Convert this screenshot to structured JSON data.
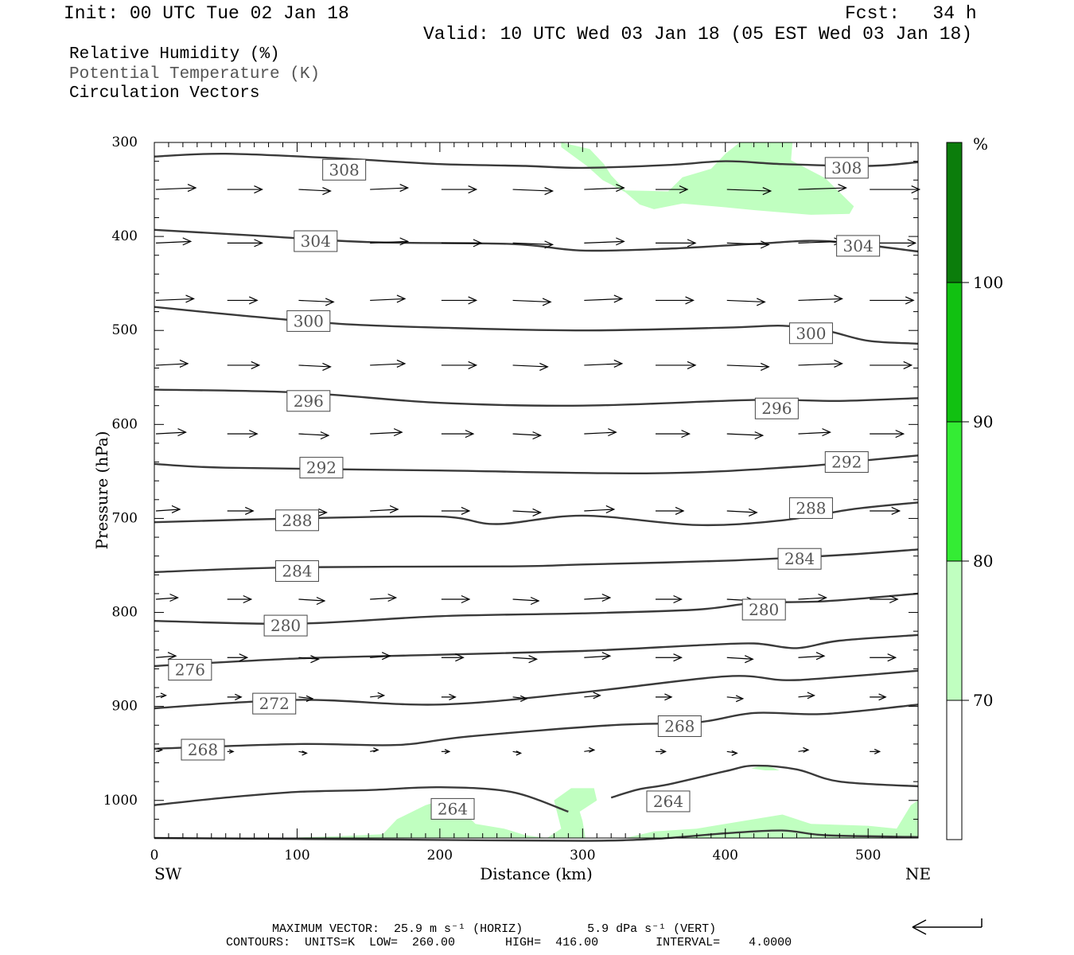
{
  "header": {
    "init": "Init: 00 UTC Tue 02 Jan 18",
    "fcst": "Fcst:   34 h",
    "valid": "Valid: 10 UTC Wed 03 Jan 18 (05 EST Wed 03 Jan 18)"
  },
  "legend": {
    "rh": "Relative Humidity (%)",
    "theta": "Potential Temperature (K)",
    "vectors": "Circulation Vectors"
  },
  "footer": {
    "max_vector": "MAXIMUM VECTOR:  25.9 m s⁻¹ (HORIZ)         5.9 dPa s⁻¹ (VERT)",
    "contours": "CONTOURS:  UNITS=K  LOW=  260.00       HIGH=  416.00        INTERVAL=    4.0000"
  },
  "colors": {
    "contour": "#3a3a3a",
    "rh_70": "#c0ffc0",
    "rh_80": "#34ec34",
    "rh_90": "#11c111",
    "rh_100": "#0b7d0b",
    "theta_label": "#555555"
  },
  "chart_data": {
    "type": "cross-section",
    "xlabel": "Distance (km)",
    "ylabel": "Pressure (hPa)",
    "x_range": [
      0,
      535
    ],
    "y_range": [
      1040,
      300
    ],
    "x_ticks": [
      "0",
      "100",
      "200",
      "300",
      "400",
      "500"
    ],
    "y_ticks": [
      "300",
      "400",
      "500",
      "600",
      "700",
      "800",
      "900",
      "1000"
    ],
    "endpoints": {
      "left": "SW",
      "right": "NE"
    },
    "colorbar": {
      "unit": "%",
      "levels": [
        "70",
        "80",
        "90",
        "100"
      ],
      "colors": [
        "#ffffff",
        "#c0ffc0",
        "#34ec34",
        "#11c111",
        "#0b7d0b"
      ]
    },
    "theta_contours": [
      {
        "label": "308",
        "points": [
          [
            0,
            315
          ],
          [
            50,
            312
          ],
          [
            130,
            317
          ],
          [
            200,
            323
          ],
          [
            260,
            325
          ],
          [
            300,
            327
          ],
          [
            360,
            324
          ],
          [
            400,
            320
          ],
          [
            440,
            323
          ],
          [
            500,
            325
          ],
          [
            535,
            321
          ]
        ]
      },
      {
        "label": "304",
        "points": [
          [
            0,
            393
          ],
          [
            70,
            399
          ],
          [
            150,
            406
          ],
          [
            250,
            408
          ],
          [
            300,
            415
          ],
          [
            360,
            413
          ],
          [
            420,
            408
          ],
          [
            470,
            405
          ],
          [
            535,
            416
          ]
        ]
      },
      {
        "label": "300",
        "points": [
          [
            0,
            475
          ],
          [
            60,
            484
          ],
          [
            130,
            493
          ],
          [
            200,
            497
          ],
          [
            300,
            500
          ],
          [
            400,
            497
          ],
          [
            440,
            495
          ],
          [
            470,
            500
          ],
          [
            500,
            511
          ],
          [
            535,
            514
          ]
        ]
      },
      {
        "label": "296",
        "points": [
          [
            0,
            563
          ],
          [
            100,
            566
          ],
          [
            200,
            577
          ],
          [
            300,
            580
          ],
          [
            420,
            574
          ],
          [
            480,
            575
          ],
          [
            535,
            572
          ]
        ]
      },
      {
        "label": "292",
        "points": [
          [
            0,
            642
          ],
          [
            50,
            646
          ],
          [
            200,
            649
          ],
          [
            350,
            652
          ],
          [
            450,
            645
          ],
          [
            500,
            638
          ],
          [
            535,
            633
          ]
        ]
      },
      {
        "label": "288",
        "points": [
          [
            0,
            704
          ],
          [
            100,
            700
          ],
          [
            200,
            698
          ],
          [
            240,
            706
          ],
          [
            300,
            697
          ],
          [
            380,
            707
          ],
          [
            440,
            702
          ],
          [
            490,
            690
          ],
          [
            535,
            683
          ]
        ]
      },
      {
        "label": "284",
        "points": [
          [
            0,
            757
          ],
          [
            100,
            752
          ],
          [
            250,
            751
          ],
          [
            300,
            749
          ],
          [
            400,
            745
          ],
          [
            480,
            739
          ],
          [
            535,
            733
          ]
        ]
      },
      {
        "label": "280",
        "points": [
          [
            0,
            809
          ],
          [
            100,
            812
          ],
          [
            200,
            804
          ],
          [
            300,
            801
          ],
          [
            380,
            797
          ],
          [
            420,
            790
          ],
          [
            470,
            788
          ],
          [
            535,
            780
          ]
        ]
      },
      {
        "label": "276",
        "points": [
          [
            0,
            857
          ],
          [
            100,
            849
          ],
          [
            200,
            845
          ],
          [
            300,
            841
          ],
          [
            380,
            835
          ],
          [
            420,
            833
          ],
          [
            450,
            838
          ],
          [
            480,
            830
          ],
          [
            535,
            824
          ]
        ]
      },
      {
        "label": "272",
        "points": [
          [
            0,
            902
          ],
          [
            100,
            893
          ],
          [
            200,
            898
          ],
          [
            300,
            885
          ],
          [
            400,
            868
          ],
          [
            440,
            872
          ],
          [
            470,
            870
          ],
          [
            535,
            862
          ]
        ]
      },
      {
        "label": "268",
        "points": [
          [
            0,
            945
          ],
          [
            100,
            940
          ],
          [
            170,
            941
          ],
          [
            220,
            932
          ],
          [
            320,
            920
          ],
          [
            380,
            917
          ],
          [
            420,
            907
          ],
          [
            470,
            908
          ],
          [
            535,
            898
          ]
        ]
      },
      {
        "label": "264",
        "points": [
          [
            0,
            1005
          ],
          [
            50,
            997
          ],
          [
            100,
            991
          ],
          [
            150,
            989
          ],
          [
            200,
            986
          ],
          [
            250,
            991
          ],
          [
            290,
            1012
          ]
        ]
      },
      {
        "label": "264",
        "points": [
          [
            320,
            997
          ],
          [
            340,
            988
          ],
          [
            360,
            983
          ],
          [
            400,
            969
          ],
          [
            420,
            963
          ],
          [
            450,
            967
          ],
          [
            480,
            980
          ],
          [
            535,
            985
          ]
        ]
      },
      {
        "label": "",
        "points": [
          [
            0,
            1040
          ],
          [
            100,
            1041
          ],
          [
            200,
            1042
          ],
          [
            300,
            1043
          ],
          [
            350,
            1041
          ],
          [
            400,
            1035
          ],
          [
            440,
            1032
          ],
          [
            470,
            1037
          ],
          [
            535,
            1039
          ]
        ]
      }
    ],
    "label_positions": [
      {
        "label": "308",
        "x": 133,
        "p": 329
      },
      {
        "label": "308",
        "x": 485,
        "p": 327
      },
      {
        "label": "304",
        "x": 113,
        "p": 405
      },
      {
        "label": "304",
        "x": 493,
        "p": 410
      },
      {
        "label": "300",
        "x": 108,
        "p": 490
      },
      {
        "label": "300",
        "x": 460,
        "p": 503
      },
      {
        "label": "296",
        "x": 108,
        "p": 575
      },
      {
        "label": "296",
        "x": 436,
        "p": 583
      },
      {
        "label": "292",
        "x": 117,
        "p": 646
      },
      {
        "label": "292",
        "x": 485,
        "p": 640
      },
      {
        "label": "288",
        "x": 100,
        "p": 702
      },
      {
        "label": "288",
        "x": 460,
        "p": 689
      },
      {
        "label": "284",
        "x": 100,
        "p": 756
      },
      {
        "label": "284",
        "x": 452,
        "p": 743
      },
      {
        "label": "280",
        "x": 92,
        "p": 814
      },
      {
        "label": "280",
        "x": 427,
        "p": 797
      },
      {
        "label": "276",
        "x": 25,
        "p": 861
      },
      {
        "label": "272",
        "x": 84,
        "p": 897
      },
      {
        "label": "268",
        "x": 368,
        "p": 921
      },
      {
        "label": "268",
        "x": 34,
        "p": 946
      },
      {
        "label": "264",
        "x": 209,
        "p": 1009
      },
      {
        "label": "264",
        "x": 360,
        "p": 1001
      }
    ],
    "rh_regions": [
      {
        "level": "70-80",
        "points": [
          [
            285,
            300
          ],
          [
            305,
            307
          ],
          [
            315,
            323
          ],
          [
            320,
            335
          ],
          [
            330,
            351
          ],
          [
            360,
            352
          ],
          [
            370,
            337
          ],
          [
            390,
            328
          ],
          [
            400,
            312
          ],
          [
            410,
            300
          ],
          [
            447,
            300
          ],
          [
            446,
            319
          ],
          [
            470,
            338
          ],
          [
            490,
            368
          ],
          [
            487,
            376
          ],
          [
            460,
            377
          ],
          [
            420,
            372
          ],
          [
            400,
            369
          ],
          [
            370,
            365
          ],
          [
            350,
            371
          ],
          [
            340,
            366
          ],
          [
            330,
            353
          ],
          [
            314,
            340
          ],
          [
            303,
            325
          ],
          [
            285,
            305
          ]
        ]
      },
      {
        "level": "70-80",
        "points": [
          [
            90,
            1040
          ],
          [
            130,
            1038
          ],
          [
            160,
            1036
          ],
          [
            170,
            1020
          ],
          [
            190,
            1005
          ],
          [
            205,
            998
          ],
          [
            215,
            1010
          ],
          [
            225,
            1025
          ],
          [
            245,
            1030
          ],
          [
            260,
            1037
          ],
          [
            275,
            1040
          ]
        ]
      },
      {
        "level": "70-80",
        "points": [
          [
            275,
            1040
          ],
          [
            285,
            1030
          ],
          [
            280,
            1000
          ],
          [
            292,
            987
          ],
          [
            308,
            987
          ],
          [
            310,
            1000
          ],
          [
            298,
            1012
          ],
          [
            300,
            1022
          ],
          [
            302,
            1040
          ]
        ]
      },
      {
        "level": "70-80",
        "points": [
          [
            330,
            1040
          ],
          [
            350,
            1033
          ],
          [
            380,
            1030
          ],
          [
            420,
            1020
          ],
          [
            440,
            1015
          ],
          [
            460,
            1025
          ],
          [
            500,
            1027
          ],
          [
            520,
            1030
          ],
          [
            530,
            1005
          ],
          [
            535,
            1000
          ],
          [
            535,
            1040
          ]
        ]
      },
      {
        "level": "70-80",
        "points": [
          [
            418,
            966
          ],
          [
            428,
            962
          ],
          [
            438,
            968
          ],
          [
            428,
            968
          ]
        ]
      }
    ],
    "circulation_vectors": [
      {
        "p": 350,
        "x": [
          0,
          50,
          100,
          150,
          200,
          250,
          300,
          350,
          400,
          450,
          500
        ],
        "u": [
          40,
          35,
          32,
          38,
          35,
          40,
          40,
          32,
          44,
          48,
          50
        ]
      },
      {
        "p": 407,
        "x": [
          0,
          50,
          100,
          150,
          200,
          250,
          300,
          350,
          400,
          450,
          500
        ],
        "u": [
          35,
          35,
          30,
          38,
          40,
          40,
          40,
          40,
          42,
          44,
          46
        ]
      },
      {
        "p": 468,
        "x": [
          0,
          50,
          100,
          150,
          200,
          250,
          300,
          350,
          400,
          450,
          500
        ],
        "u": [
          38,
          30,
          35,
          35,
          35,
          38,
          38,
          38,
          38,
          44,
          44
        ]
      },
      {
        "p": 537,
        "x": [
          0,
          50,
          100,
          150,
          200,
          250,
          300,
          350,
          400,
          450,
          500
        ],
        "u": [
          32,
          32,
          32,
          35,
          35,
          35,
          38,
          40,
          42,
          44,
          42
        ]
      },
      {
        "p": 610,
        "x": [
          0,
          50,
          100,
          150,
          200,
          250,
          300,
          350,
          400,
          450,
          500
        ],
        "u": [
          30,
          30,
          30,
          32,
          32,
          28,
          32,
          34,
          36,
          32,
          34
        ]
      },
      {
        "p": 692,
        "x": [
          0,
          50,
          100,
          150,
          200,
          250,
          300,
          350,
          400,
          450,
          500
        ],
        "u": [
          24,
          26,
          28,
          28,
          28,
          28,
          30,
          28,
          30,
          32,
          30
        ]
      },
      {
        "p": 786,
        "x": [
          0,
          50,
          100,
          150,
          200,
          250,
          300,
          350,
          400,
          450,
          500
        ],
        "u": [
          22,
          24,
          26,
          26,
          28,
          26,
          26,
          26,
          28,
          28,
          28
        ]
      },
      {
        "p": 848,
        "x": [
          0,
          50,
          100,
          150,
          200,
          250,
          300,
          350,
          400,
          450,
          500
        ],
        "u": [
          20,
          20,
          20,
          20,
          22,
          24,
          26,
          26,
          26,
          26,
          26
        ]
      },
      {
        "p": 890,
        "x": [
          0,
          50,
          100,
          150,
          200,
          250,
          300,
          350,
          400,
          450,
          500
        ],
        "u": [
          10,
          14,
          14,
          14,
          14,
          14,
          16,
          16,
          16,
          16,
          16
        ]
      },
      {
        "p": 948,
        "x": [
          0,
          50,
          100,
          150,
          200,
          250,
          300,
          350,
          400,
          450,
          500
        ],
        "u": [
          6,
          6,
          8,
          8,
          8,
          8,
          10,
          10,
          10,
          10,
          10
        ]
      }
    ]
  }
}
